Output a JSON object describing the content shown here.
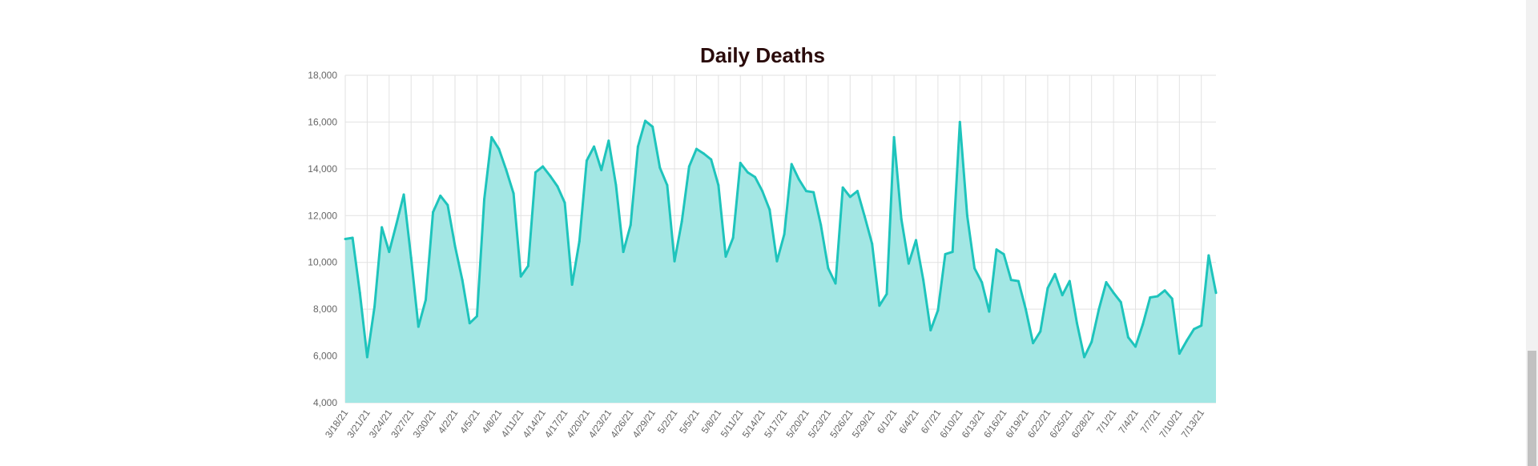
{
  "colors": {
    "line": "#1ec4bc",
    "fill": "#a3e7e4",
    "title": "#2a0b0b",
    "tick": "#666666",
    "grid": "#e2e2e2"
  },
  "chart_data": {
    "type": "area",
    "title": "Daily Deaths",
    "xlabel": "",
    "ylabel": "",
    "ylim": [
      4000,
      18000
    ],
    "yticks": [
      4000,
      6000,
      8000,
      10000,
      12000,
      14000,
      16000,
      18000
    ],
    "ytick_labels": [
      "4,000",
      "6,000",
      "8,000",
      "10,000",
      "12,000",
      "14,000",
      "16,000",
      "18,000"
    ],
    "grid": true,
    "legend": "none",
    "x_start_label": "3/18/21",
    "xtick_labels": [
      "3/18/21",
      "3/21/21",
      "3/24/21",
      "3/27/21",
      "3/30/21",
      "4/2/21",
      "4/5/21",
      "4/8/21",
      "4/11/21",
      "4/14/21",
      "4/17/21",
      "4/20/21",
      "4/23/21",
      "4/26/21",
      "4/29/21",
      "5/2/21",
      "5/5/21",
      "5/8/21",
      "5/11/21",
      "5/14/21",
      "5/17/21",
      "5/20/21",
      "5/23/21",
      "5/26/21",
      "5/29/21",
      "6/1/21",
      "6/4/21",
      "6/7/21",
      "6/10/21",
      "6/13/21",
      "6/16/21",
      "6/19/21",
      "6/22/21",
      "6/25/21",
      "6/28/21",
      "7/1/21",
      "7/4/21",
      "7/7/21",
      "7/10/21",
      "7/13/21"
    ],
    "series": [
      {
        "values": [
          11000,
          11050,
          8700,
          5950,
          8100,
          11500,
          10450,
          11650,
          12900,
          10200,
          7250,
          8400,
          12150,
          12850,
          12450,
          10700,
          9250,
          7400,
          7700,
          12700,
          15350,
          14850,
          13950,
          12950,
          9400,
          9850,
          13850,
          14100,
          13700,
          13250,
          12550,
          9050,
          10900,
          14350,
          14950,
          13950,
          15200,
          13300,
          10450,
          11600,
          14950,
          16050,
          15800,
          14050,
          13300,
          10050,
          11750,
          14100,
          14850,
          14650,
          14400,
          13300,
          10250,
          11050,
          14250,
          13850,
          13650,
          13050,
          12250,
          10050,
          11200,
          14200,
          13550,
          13050,
          13000,
          11600,
          9750,
          9100,
          13200,
          12800,
          13050,
          11950,
          10800,
          8150,
          8650,
          15350,
          11850,
          9950,
          10950,
          9250,
          7100,
          7950,
          10350,
          10450,
          16000,
          12000,
          9750,
          9150,
          7900,
          10550,
          10350,
          9250,
          9200,
          8000,
          6550,
          7050,
          8900,
          9500,
          8600,
          9200,
          7400,
          5950,
          6600,
          8000,
          9150,
          8700,
          8300,
          6800,
          6400,
          7350,
          8500,
          8550,
          8800,
          8450,
          6100,
          6650,
          7150,
          7300,
          10300,
          8700
        ]
      }
    ]
  }
}
